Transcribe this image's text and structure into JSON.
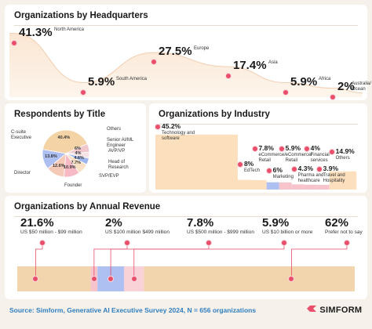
{
  "hq": {
    "title": "Organizations by Headquarters",
    "items": [
      {
        "value": "41.3%",
        "label": "North America"
      },
      {
        "value": "5.9%",
        "label": "South America"
      },
      {
        "value": "27.5%",
        "label": "Europe"
      },
      {
        "value": "17.4%",
        "label": "Asia"
      },
      {
        "value": "5.9%",
        "label": "Africa"
      },
      {
        "value": "2%",
        "label": "Australia/ Ocean"
      }
    ]
  },
  "title_card": {
    "title": "Respondents by Title",
    "segments": [
      {
        "label": "C-suite Executive",
        "value": "40.4%",
        "color": "#f4d3a6"
      },
      {
        "label": "Others",
        "value": "6%",
        "color": "#f1c6cc"
      },
      {
        "label": "Senior AI/ML Engineer",
        "value": "4%",
        "color": "#f7e3e7"
      },
      {
        "label": "AVP/VP",
        "value": "4.6%",
        "color": "#9fb5ee"
      },
      {
        "label": "Head of Research",
        "value": "7.7%",
        "color": "#fbe0c6"
      },
      {
        "label": "SVP/EVP",
        "value": "10.9%",
        "color": "#f7b9c3"
      },
      {
        "label": "Founder",
        "value": "12.6%",
        "color": "#f5c9b8"
      },
      {
        "label": "Director",
        "value": "13.8%",
        "color": "#aebff2"
      }
    ]
  },
  "industry": {
    "title": "Organizations by Industry",
    "items": [
      {
        "value": "45.2%",
        "label": "Technology and software",
        "color": "#fce0bd"
      },
      {
        "value": "8%",
        "label": "EdTech",
        "color": "#fce0bd"
      },
      {
        "value": "7.8%",
        "label": "eCommerce/ Retail",
        "color": "#fce0bd"
      },
      {
        "value": "6%",
        "label": "Marketing",
        "color": "#aebff2"
      },
      {
        "value": "5.9%",
        "label": "eCommerce/ Retail",
        "color": "#f7c4cc"
      },
      {
        "value": "4.3%",
        "label": "Pharma and healthcare",
        "color": "#f7c4cc"
      },
      {
        "value": "4%",
        "label": "Financial services",
        "color": "#f7c4cc"
      },
      {
        "value": "3.9%",
        "label": "Travel and Hospitality",
        "color": "#f7c4cc"
      },
      {
        "value": "14.9%",
        "label": "Others",
        "color": "#fce0bd"
      }
    ]
  },
  "revenue": {
    "title": "Organizations by Annual Revenue",
    "items": [
      {
        "value": "21.6%",
        "label": "US $50 million - $99 million",
        "color": "#f3d5ad"
      },
      {
        "value": "2%",
        "label": "US $100 million $499 million",
        "color": "#f7c4cc"
      },
      {
        "value": "7.8%",
        "label": "US $500 million - $999 million",
        "color": "#aebff2"
      },
      {
        "value": "5.9%",
        "label": "US $10 billion or more",
        "color": "#f9d2d8"
      },
      {
        "value": "62%",
        "label": "Prefer not to say",
        "color": "#f3d5ad"
      }
    ]
  },
  "footer": {
    "source": "Source: Simform, Generative AI Executive Survey 2024, N = 656 organizations",
    "brand": "SIMFORM"
  },
  "chart_data": [
    {
      "type": "area",
      "title": "Organizations by Headquarters",
      "categories": [
        "North America",
        "South America",
        "Europe",
        "Asia",
        "Africa",
        "Australia/ Ocean"
      ],
      "values": [
        41.3,
        5.9,
        27.5,
        17.4,
        5.9,
        2
      ]
    },
    {
      "type": "pie",
      "title": "Respondents by Title",
      "categories": [
        "C-suite Executive",
        "Others",
        "Senior AI/ML Engineer",
        "AVP/VP",
        "Head of Research",
        "SVP/EVP",
        "Founder",
        "Director"
      ],
      "values": [
        40.4,
        6,
        4,
        4.6,
        7.7,
        10.9,
        12.6,
        13.8
      ]
    },
    {
      "type": "bar",
      "title": "Organizations by Industry",
      "categories": [
        "Technology and software",
        "EdTech",
        "eCommerce/ Retail",
        "Marketing",
        "eCommerce/ Retail",
        "Pharma and healthcare",
        "Financial services",
        "Travel and Hospitality",
        "Others"
      ],
      "values": [
        45.2,
        8,
        7.8,
        6,
        5.9,
        4.3,
        4,
        3.9,
        14.9
      ]
    },
    {
      "type": "bar",
      "title": "Organizations by Annual Revenue",
      "categories": [
        "US $50 million - $99 million",
        "US $100 million $499 million",
        "US $500 million - $999 million",
        "US $10 billion or more",
        "Prefer not to say"
      ],
      "values": [
        21.6,
        2,
        7.8,
        5.9,
        62
      ]
    }
  ]
}
